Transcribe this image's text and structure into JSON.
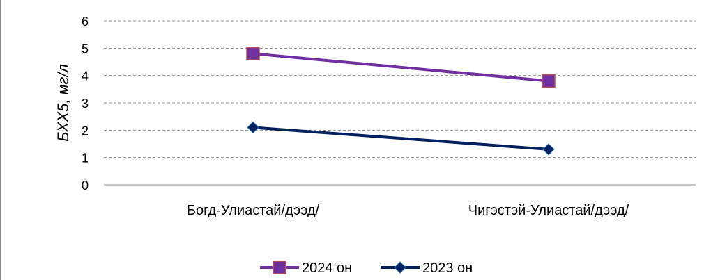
{
  "chart_data": {
    "type": "line",
    "categories": [
      "Богд-Улиастай/дээд/",
      "Чигэстэй-Улиастай/дээд/"
    ],
    "series": [
      {
        "name": "2024 он",
        "values": [
          4.8,
          3.8
        ],
        "color": "#7030A0",
        "marker": "square",
        "marker_border": "#C0504D"
      },
      {
        "name": "2023 он",
        "values": [
          2.1,
          1.3
        ],
        "color": "#002060",
        "marker": "diamond",
        "marker_border": "#002060"
      }
    ],
    "ylabel": "БХХ5, мг/л",
    "ylim": [
      0,
      6
    ],
    "yticks": [
      0,
      1,
      2,
      3,
      4,
      5,
      6
    ],
    "grid": true,
    "grid_style": "dashed",
    "legend_position": "bottom"
  }
}
